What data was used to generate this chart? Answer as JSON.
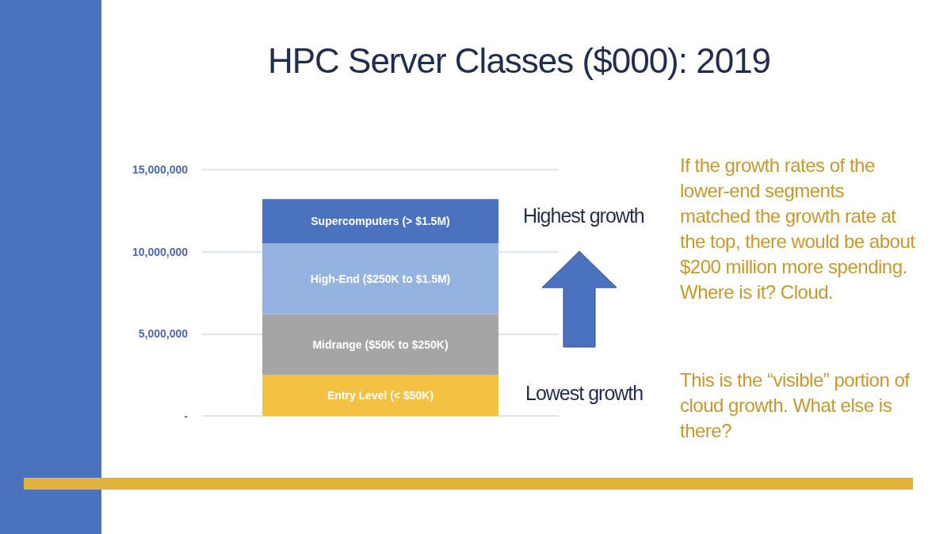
{
  "chart_data": {
    "type": "bar",
    "title": "HPC Server Classes ($000): 2019",
    "stacked": true,
    "categories": [
      null
    ],
    "series": [
      {
        "name": "Entry Level (< $50K)",
        "color": "#f4c242",
        "values": [
          2500000
        ]
      },
      {
        "name": "Midrange ($50K to $250K)",
        "color": "#a5a5a5",
        "values": [
          3700000
        ]
      },
      {
        "name": "High-End ($250K to $1.5M)",
        "color": "#95b3e0",
        "values": [
          4300000
        ]
      },
      {
        "name": "Supercomputers (> $1.5M)",
        "color": "#4a72bf",
        "values": [
          2700000
        ]
      }
    ],
    "ylim": [
      0,
      15000000
    ],
    "yticks": [
      {
        "value": 0,
        "label": "-"
      },
      {
        "value": 5000000,
        "label": "5,000,000"
      },
      {
        "value": 10000000,
        "label": "10,000,000"
      },
      {
        "value": 15000000,
        "label": "15,000,000"
      }
    ],
    "grid": "y",
    "legend": false,
    "annotations": [
      "Highest growth",
      "Lowest growth",
      "If the growth rates of the lower-end segments matched the growth rate at the top, there would be about $200 million more spending. Where is it? Cloud.",
      "This is the “visible” portion of cloud growth. What else is there?"
    ]
  }
}
